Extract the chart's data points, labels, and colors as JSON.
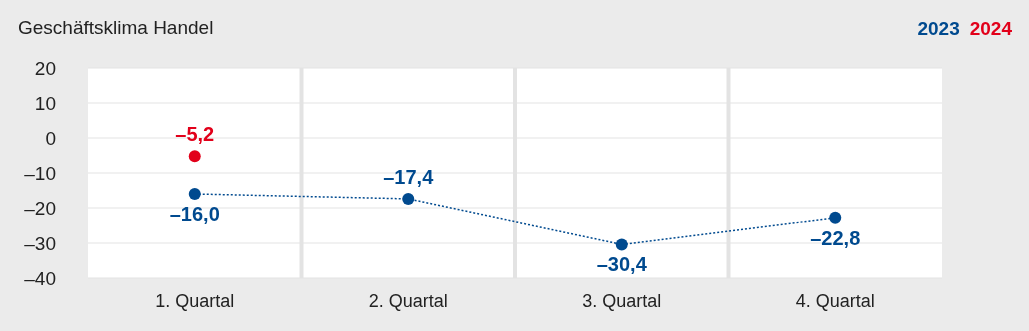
{
  "chart_data": {
    "type": "line",
    "title": "Geschäftsklima Handel",
    "categories": [
      "1. Quartal",
      "2. Quartal",
      "3. Quartal",
      "4. Quartal"
    ],
    "series": [
      {
        "name": "2023",
        "color": "#004a8f",
        "values": [
          -16.0,
          -17.4,
          -30.4,
          -22.8
        ],
        "value_labels": [
          "–16,0",
          "–17,4",
          "–30,4",
          "–22,8"
        ],
        "line_style": "dotted"
      },
      {
        "name": "2024",
        "color": "#e2001a",
        "values": [
          -5.2,
          null,
          null,
          null
        ],
        "value_labels": [
          "–5,2",
          null,
          null,
          null
        ]
      }
    ],
    "ylim": [
      -40,
      20
    ],
    "yticks": [
      20,
      10,
      0,
      {
        "value": -10,
        "label": "–10"
      },
      {
        "value": -20,
        "label": "–20"
      },
      {
        "value": -30,
        "label": "–30"
      },
      {
        "value": -40,
        "label": "–40"
      }
    ],
    "grid": true,
    "legend": "top right",
    "marker": "circle"
  }
}
